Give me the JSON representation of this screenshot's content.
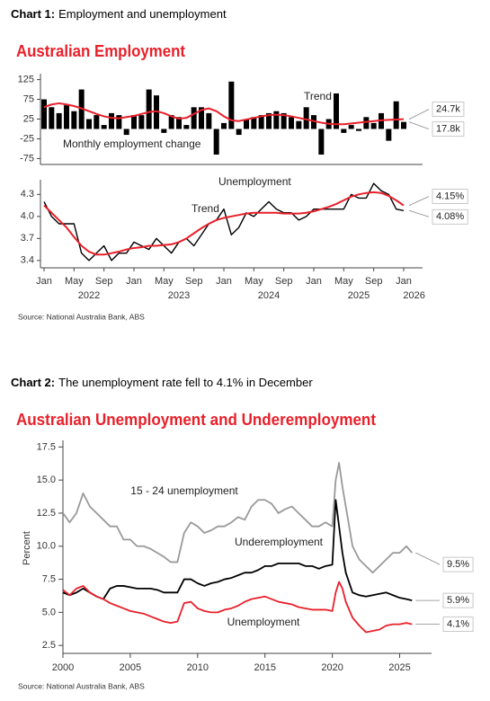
{
  "chart_data": [
    {
      "type": "panels",
      "caption": {
        "label": "Chart 1:",
        "text": "Employment and unemployment"
      },
      "title": "Australian Employment",
      "categories": [
        "Jan",
        null,
        null,
        null,
        "May",
        null,
        null,
        null,
        "Sep",
        null,
        null,
        null,
        "Jan",
        null,
        null,
        null,
        "May",
        null,
        null,
        null,
        "Sep",
        null,
        null,
        null,
        "Jan",
        null,
        null,
        null,
        "May",
        null,
        null,
        null,
        "Sep",
        null,
        null,
        null,
        "Jan",
        null,
        null,
        null,
        "May",
        null,
        null,
        null,
        "Sep",
        null,
        null,
        null,
        "Jan"
      ],
      "year_labels": [
        "2022",
        "2023",
        "2024",
        "2025",
        "2026"
      ],
      "panels": [
        {
          "type": "bar",
          "ylim": [
            -90,
            140
          ],
          "yticks": [
            125,
            75,
            25,
            -25,
            -75
          ],
          "series": [
            {
              "name": "Monthly employment change",
              "type": "bar",
              "color": "#000000",
              "end_label": "17.8k",
              "values": [
                75,
                55,
                40,
                60,
                45,
                100,
                25,
                35,
                10,
                40,
                35,
                -15,
                35,
                35,
                100,
                85,
                -10,
                35,
                30,
                10,
                55,
                55,
                40,
                -65,
                15,
                120,
                -15,
                25,
                30,
                35,
                40,
                45,
                40,
                30,
                20,
                55,
                35,
                -65,
                25,
                90,
                -10,
                10,
                -5,
                30,
                15,
                40,
                -30,
                70,
                17.8
              ]
            },
            {
              "name": "Trend",
              "type": "line",
              "color": "#e8202a",
              "end_label": "24.7k",
              "values": [
                55,
                62,
                65,
                62,
                58,
                52,
                45,
                38,
                32,
                28,
                27,
                30,
                33,
                38,
                43,
                45,
                40,
                32,
                26,
                28,
                38,
                48,
                52,
                45,
                32,
                22,
                20,
                24,
                28,
                32,
                35,
                36,
                35,
                32,
                28,
                24,
                20,
                16,
                13,
                12,
                12,
                14,
                16,
                18,
                20,
                22,
                23,
                24,
                24.7
              ]
            }
          ]
        },
        {
          "type": "line",
          "ylim": [
            3.3,
            4.5
          ],
          "yticks": [
            4.3,
            {
              "value": 4,
              "label": "4.0"
            },
            3.7,
            3.4
          ],
          "series": [
            {
              "name": "Unemployment",
              "type": "line",
              "color": "#000000",
              "end_label": "4.08%",
              "values": [
                4.2,
                4.0,
                3.9,
                3.9,
                3.9,
                3.5,
                3.4,
                3.5,
                3.6,
                3.4,
                3.5,
                3.5,
                3.65,
                3.6,
                3.55,
                3.7,
                3.6,
                3.5,
                3.65,
                3.7,
                3.6,
                3.75,
                3.9,
                3.95,
                4.1,
                3.75,
                3.85,
                4.05,
                4.0,
                4.1,
                4.2,
                4.1,
                4.05,
                4.05,
                3.95,
                4.0,
                4.1,
                4.1,
                4.1,
                4.1,
                4.1,
                4.3,
                4.25,
                4.25,
                4.45,
                4.35,
                4.3,
                4.1,
                4.08
              ]
            },
            {
              "name": "Trend",
              "type": "line",
              "color": "#e8202a",
              "end_label": "4.15%",
              "values": [
                4.15,
                4.05,
                3.95,
                3.85,
                3.72,
                3.6,
                3.52,
                3.48,
                3.48,
                3.5,
                3.52,
                3.55,
                3.57,
                3.58,
                3.6,
                3.6,
                3.61,
                3.62,
                3.65,
                3.7,
                3.77,
                3.84,
                3.9,
                3.95,
                3.98,
                4.0,
                4.02,
                4.04,
                4.05,
                4.05,
                4.05,
                4.05,
                4.04,
                4.04,
                4.04,
                4.05,
                4.07,
                4.1,
                4.13,
                4.17,
                4.22,
                4.27,
                4.3,
                4.32,
                4.33,
                4.32,
                4.28,
                4.22,
                4.15
              ]
            }
          ]
        }
      ],
      "source": "Source: National Australia Bank, ABS"
    },
    {
      "type": "line",
      "caption": {
        "label": "Chart 2:",
        "text": "The unemployment rate fell to 4.1% in December"
      },
      "title": "Australian Unemployment and Underemployment",
      "ylabel": "Percent",
      "x": [
        2000,
        2000.5,
        2001,
        2001.5,
        2002,
        2002.5,
        2003,
        2003.5,
        2004,
        2004.5,
        2005,
        2005.5,
        2006,
        2006.5,
        2007,
        2007.5,
        2008,
        2008.5,
        2009,
        2009.5,
        2010,
        2010.5,
        2011,
        2011.5,
        2012,
        2012.5,
        2013,
        2013.5,
        2014,
        2014.5,
        2015,
        2015.5,
        2016,
        2016.5,
        2017,
        2017.5,
        2018,
        2018.5,
        2019,
        2019.5,
        2020,
        2020.25,
        2020.5,
        2020.75,
        2021,
        2021.5,
        2022,
        2022.5,
        2023,
        2023.5,
        2024,
        2024.5,
        2025,
        2025.5,
        2025.92
      ],
      "xlim": [
        2000,
        2026.7
      ],
      "xticks": [
        2000,
        2005,
        2010,
        2015,
        2020,
        2025
      ],
      "ylim": [
        1.9,
        18
      ],
      "yticks": [
        2.5,
        {
          "value": 5,
          "label": "5.0"
        },
        7.5,
        {
          "value": 10,
          "label": "10.0"
        },
        12.5,
        {
          "value": 15,
          "label": "15.0"
        },
        17.5
      ],
      "series": [
        {
          "name": "15 - 24 unemployment",
          "color": "#999999",
          "end_label": "9.5%",
          "values": [
            12.5,
            11.8,
            12.5,
            14,
            13,
            12.5,
            12.0,
            11.5,
            11.5,
            10.5,
            10.5,
            10.0,
            10.0,
            9.8,
            9.5,
            9.2,
            8.8,
            8.8,
            11.0,
            11.8,
            11.5,
            11.0,
            11.2,
            11.5,
            11.5,
            11.8,
            12.2,
            12.0,
            13.0,
            13.5,
            13.5,
            13.2,
            12.5,
            12.8,
            13.0,
            12.5,
            12.0,
            11.5,
            11.5,
            11.8,
            11.5,
            15.0,
            16.3,
            14.5,
            13.0,
            10.0,
            9.0,
            8.5,
            8.0,
            8.5,
            9.0,
            9.5,
            9.5,
            10.0,
            9.5
          ]
        },
        {
          "name": "Underemployment",
          "color": "#000000",
          "end_label": "5.9%",
          "values": [
            6.5,
            6.3,
            6.5,
            6.8,
            6.5,
            6.2,
            6.0,
            6.8,
            7.0,
            7.0,
            6.9,
            6.8,
            6.8,
            6.8,
            6.7,
            6.5,
            6.5,
            6.5,
            7.5,
            7.5,
            7.2,
            7.0,
            7.2,
            7.3,
            7.5,
            7.6,
            7.8,
            8.0,
            8.0,
            8.2,
            8.5,
            8.5,
            8.7,
            8.7,
            8.7,
            8.7,
            8.5,
            8.5,
            8.3,
            8.5,
            8.6,
            13.5,
            11.5,
            9.5,
            8.0,
            6.5,
            6.3,
            6.2,
            6.3,
            6.4,
            6.5,
            6.3,
            6.1,
            6.0,
            5.9
          ]
        },
        {
          "name": "Unemployment",
          "color": "#e8202a",
          "end_label": "4.1%",
          "values": [
            6.7,
            6.3,
            6.8,
            7.0,
            6.5,
            6.2,
            6.0,
            5.7,
            5.5,
            5.3,
            5.1,
            5.0,
            4.9,
            4.7,
            4.5,
            4.3,
            4.2,
            4.3,
            5.7,
            5.8,
            5.3,
            5.1,
            5.0,
            5.0,
            5.2,
            5.3,
            5.5,
            5.8,
            6.0,
            6.1,
            6.2,
            6.0,
            5.8,
            5.7,
            5.6,
            5.4,
            5.3,
            5.2,
            5.2,
            5.2,
            5.1,
            6.5,
            7.3,
            6.8,
            5.8,
            4.6,
            4.0,
            3.5,
            3.6,
            3.7,
            4.0,
            4.1,
            4.1,
            4.2,
            4.1
          ]
        }
      ],
      "source": "Source: National Australia Bank, ABS"
    }
  ]
}
